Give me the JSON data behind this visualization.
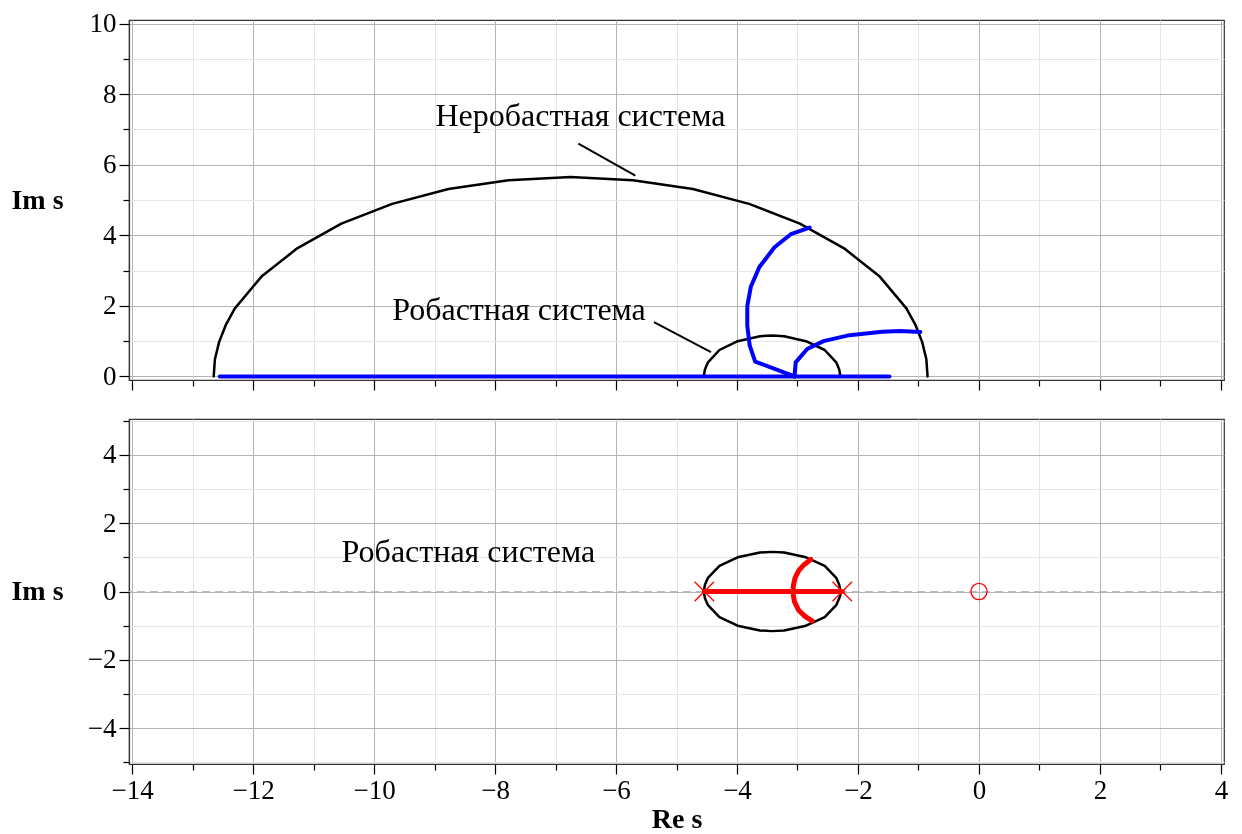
{
  "chart_data": [
    {
      "type": "line",
      "ylabel": "Im s",
      "xlim": [
        -14.05,
        4.05
      ],
      "ylim": [
        -0.1,
        10.1
      ],
      "xticks": [
        -14,
        {
          "value": -13,
          "label": null
        },
        -12,
        {
          "value": -11,
          "label": null
        },
        -10,
        {
          "value": -9,
          "label": null
        },
        -8,
        {
          "value": -7,
          "label": null
        },
        -6,
        {
          "value": -5,
          "label": null
        },
        -4,
        {
          "value": -3,
          "label": null
        },
        -2,
        {
          "value": -1,
          "label": null
        },
        0,
        {
          "value": 1,
          "label": null
        },
        2,
        {
          "value": 3,
          "label": null
        },
        4
      ],
      "yticks": [
        0,
        {
          "value": 1,
          "label": null
        },
        2,
        {
          "value": 3,
          "label": null
        },
        4,
        {
          "value": 5,
          "label": null
        },
        6,
        {
          "value": 7,
          "label": null
        },
        8,
        {
          "value": 9,
          "label": null
        },
        10
      ],
      "grid": true,
      "tick_labels": "y",
      "line_style": "solid",
      "series": [
        {
          "color": "#000000",
          "x": [
            -0.85,
            -0.87,
            -0.94,
            -1.05,
            -1.2,
            -1.64,
            -2.23,
            -2.96,
            -3.8,
            -4.73,
            -5.72,
            -6.75,
            -7.78,
            -8.77,
            -9.7,
            -10.54,
            -11.27,
            -11.86,
            -12.3,
            -12.45,
            -12.56,
            -12.63,
            -12.65
          ],
          "values": [
            0,
            0.49,
            0.98,
            1.46,
            1.93,
            2.83,
            3.63,
            4.33,
            4.89,
            5.31,
            5.56,
            5.65,
            5.56,
            5.31,
            4.89,
            4.33,
            3.63,
            2.83,
            1.93,
            1.46,
            0.98,
            0.49,
            0
          ]
        },
        {
          "color": "#000000",
          "x": [
            -2.29,
            -2.31,
            -2.36,
            -2.55,
            -2.86,
            -3.22,
            -3.42,
            -3.62,
            -3.99,
            -4.29,
            -4.48,
            -4.53,
            -4.55
          ],
          "values": [
            0,
            0.2,
            0.4,
            0.75,
            1.0,
            1.14,
            1.16,
            1.14,
            1.0,
            0.75,
            0.4,
            0.2,
            0
          ]
        },
        {
          "color": "#0000ff",
          "x": [
            -12.55,
            -1.48
          ],
          "values": [
            0,
            0
          ]
        },
        {
          "color": "#0000ff",
          "x": [
            -3.05,
            -3.7,
            -3.79,
            -3.83,
            -3.83,
            -3.77,
            -3.63,
            -3.38,
            -3.11,
            -2.8
          ],
          "values": [
            0,
            0.42,
            0.88,
            1.44,
            1.99,
            2.55,
            3.1,
            3.66,
            4.03,
            4.22
          ]
        },
        {
          "color": "#0000ff",
          "x": [
            -3.05,
            -3.03,
            -2.84,
            -2.57,
            -2.14,
            -1.6,
            -1.3,
            -0.97
          ],
          "values": [
            0,
            0.4,
            0.78,
            1.0,
            1.17,
            1.27,
            1.29,
            1.26
          ]
        }
      ],
      "annotations": [
        {
          "text": "Неробастная система",
          "x": -5.68,
          "y": 5.69
        },
        {
          "text": "Робастная система",
          "x": -4.43,
          "y": 0.69
        }
      ]
    },
    {
      "type": "line",
      "xlabel": "Re s",
      "ylabel": "Im s",
      "xlim": [
        -14.05,
        4.05
      ],
      "ylim": [
        -5.05,
        5.05
      ],
      "xticks": [
        {
          "value": -14,
          "label": "−14"
        },
        {
          "value": -13,
          "label": null
        },
        {
          "value": -12,
          "label": "−12"
        },
        {
          "value": -11,
          "label": null
        },
        {
          "value": -10,
          "label": "−10"
        },
        {
          "value": -9,
          "label": null
        },
        {
          "value": -8,
          "label": "−8"
        },
        {
          "value": -7,
          "label": null
        },
        {
          "value": -6,
          "label": "−6"
        },
        {
          "value": -5,
          "label": null
        },
        {
          "value": -4,
          "label": "−4"
        },
        {
          "value": -3,
          "label": null
        },
        {
          "value": -2,
          "label": "−2"
        },
        {
          "value": -1,
          "label": null
        },
        0,
        {
          "value": 1,
          "label": null
        },
        2,
        {
          "value": 3,
          "label": null
        },
        4
      ],
      "yticks": [
        {
          "value": -5,
          "label": null
        },
        {
          "value": -4,
          "label": "−4"
        },
        {
          "value": -3,
          "label": null
        },
        {
          "value": -2,
          "label": "−2"
        },
        {
          "value": -1,
          "label": null
        },
        0,
        {
          "value": 1,
          "label": null
        },
        2,
        {
          "value": 3,
          "label": null
        },
        4,
        {
          "value": 5,
          "label": null
        }
      ],
      "grid": true,
      "line_style": "solid",
      "series": [
        {
          "color": "#000000",
          "x": [
            -2.29,
            -2.31,
            -2.36,
            -2.55,
            -2.86,
            -3.22,
            -3.42,
            -3.62,
            -3.99,
            -4.29,
            -4.48,
            -4.53,
            -4.55,
            -4.53,
            -4.48,
            -4.29,
            -3.99,
            -3.62,
            -3.42,
            -3.22,
            -2.86,
            -2.55,
            -2.36,
            -2.31,
            -2.29
          ],
          "values": [
            0,
            0.2,
            0.4,
            0.75,
            1.0,
            1.14,
            1.16,
            1.14,
            1.0,
            0.75,
            0.4,
            0.2,
            0,
            -0.2,
            -0.4,
            -0.75,
            -1.0,
            -1.14,
            -1.16,
            -1.14,
            -1.0,
            -0.75,
            -0.4,
            -0.2,
            -0.1
          ]
        },
        {
          "color": "#ff0000",
          "x": [
            -4.54,
            -2.26
          ],
          "values": [
            0,
            0
          ]
        },
        {
          "color": "#ff0000",
          "x": [
            -2.78,
            -2.9,
            -2.98,
            -3.04,
            -3.07,
            -3.07,
            -3.05,
            -2.98,
            -2.88,
            -2.76
          ],
          "values": [
            0.94,
            0.77,
            0.61,
            0.4,
            0.15,
            -0.1,
            -0.3,
            -0.55,
            -0.72,
            -0.86
          ]
        },
        {
          "type": "scatter",
          "marker": "cross",
          "color": "#ff0000",
          "x": [
            -4.54,
            -2.26
          ],
          "values": [
            0,
            0
          ]
        },
        {
          "type": "scatter",
          "marker": "circle",
          "color": "#ff0000",
          "x": [
            0
          ],
          "values": [
            0
          ]
        }
      ],
      "ref_lines": [
        {
          "axis": "y",
          "value": 0,
          "color": "#bbbbbb",
          "line_style": "dashed"
        }
      ],
      "annotations": [
        "Робастная система"
      ]
    }
  ]
}
